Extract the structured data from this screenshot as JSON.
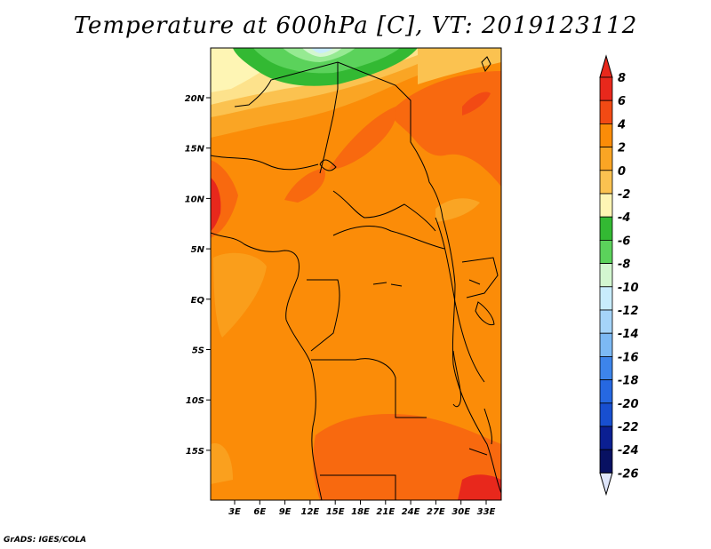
{
  "title": "Temperature at 600hPa [C], VT: 2019123112",
  "credit": "GrADS: IGES/COLA",
  "map": {
    "lat_ticks": [
      "20N",
      "15N",
      "10N",
      "5N",
      "EQ",
      "5S",
      "10S",
      "15S"
    ],
    "lon_ticks": [
      "3E",
      "6E",
      "9E",
      "12E",
      "15E",
      "18E",
      "21E",
      "24E",
      "27E",
      "30E",
      "33E"
    ]
  },
  "colorbar": {
    "labels": [
      "8",
      "6",
      "4",
      "2",
      "0",
      "-2",
      "-4",
      "-6",
      "-8",
      "-10",
      "-12",
      "-14",
      "-16",
      "-18",
      "-20",
      "-22",
      "-24",
      "-26"
    ],
    "colors": [
      "#e8281c",
      "#f24a14",
      "#f8690f",
      "#fb8c08",
      "#faa524",
      "#fbc250",
      "#fde28c",
      "#fef5b4",
      "#33b933",
      "#5bd25b",
      "#96ea92",
      "#d3f7d0",
      "#c8ecfc",
      "#a5d4f9",
      "#7cb9f4",
      "#5a9ef0",
      "#3d84ea",
      "#2668e1",
      "#184fd0",
      "#0f36b6",
      "#0b1f92",
      "#081162"
    ],
    "top_color": "#e8281c",
    "bottom_color": "#dfe6fb"
  }
}
